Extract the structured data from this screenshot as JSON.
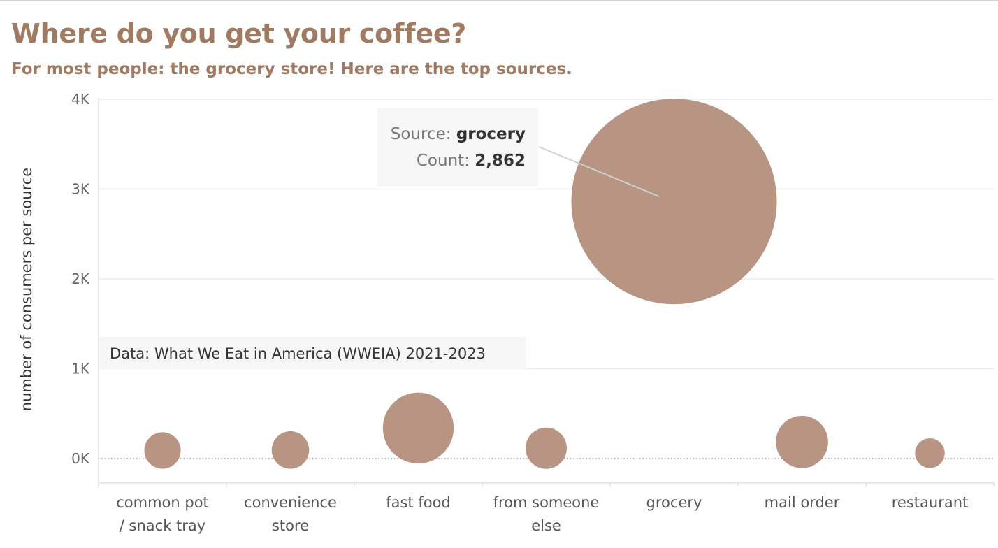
{
  "title": "Where do you get your coffee?",
  "subtitle": "For most people: the grocery store! Here are the top sources.",
  "tooltip": {
    "source_label": "Source: ",
    "source_value": "grocery",
    "count_label": "Count: ",
    "count_value": "2,862"
  },
  "note": "Data: What We Eat in America (WWEIA) 2021-2023",
  "colors": {
    "title": "#a07b63",
    "bubble": "#b89483",
    "grid": "#ececec"
  },
  "chart_data": {
    "type": "scatter",
    "ylabel": "number of consumers per source",
    "ylim": [
      -270,
      4000
    ],
    "yticks": [
      0,
      1000,
      2000,
      3000,
      4000
    ],
    "ytick_labels": [
      "0K",
      "1K",
      "2K",
      "3K",
      "4K"
    ],
    "categories": [
      [
        "common pot",
        "/ snack tray"
      ],
      [
        "convenience",
        "store"
      ],
      [
        "fast food"
      ],
      [
        "from someone",
        "else"
      ],
      [
        "grocery"
      ],
      [
        "mail order"
      ],
      [
        "restaurant"
      ]
    ],
    "values": [
      90,
      95,
      340,
      115,
      2862,
      185,
      60
    ],
    "size_encodes": "count",
    "grid": true,
    "zero_line": "dotted"
  }
}
